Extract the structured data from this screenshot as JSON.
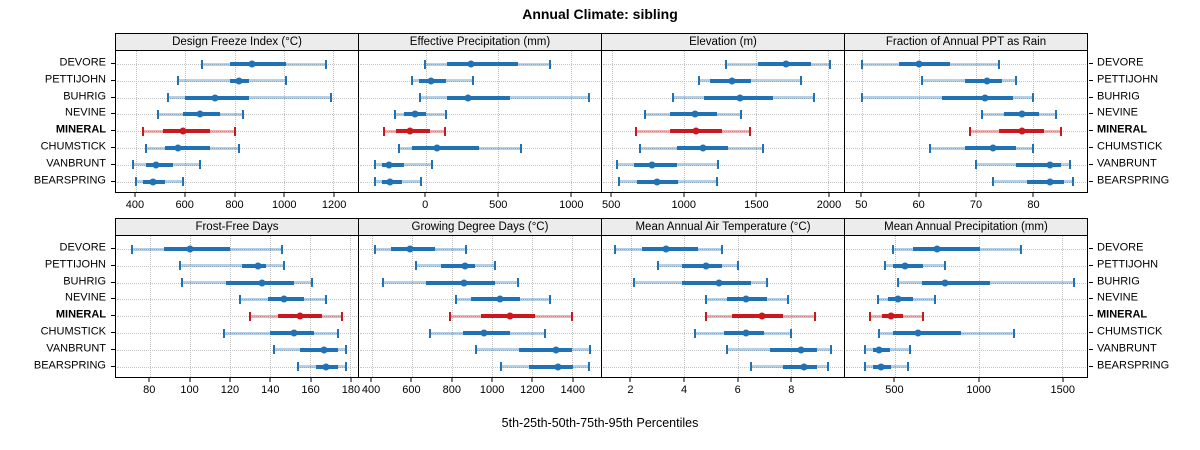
{
  "title": "Annual Climate: sibling",
  "caption": "5th-25th-50th-75th-95th Percentiles",
  "colors": {
    "series": "#2171B5",
    "series_faint": "rgba(33,113,181,0.33)",
    "highlight": "#CB181D",
    "highlight_faint": "rgba(203,24,29,0.33)",
    "strip_bg": "#ECECEC",
    "grid": "#C4C4C4",
    "border": "#000000"
  },
  "chart_data": {
    "type": "dotplot-interval",
    "orientation": "horizontal",
    "categories": [
      "DEVORE",
      "PETTIJOHN",
      "BUHRIG",
      "NEVINE",
      "MINERAL",
      "CHUMSTICK",
      "VANBRUNT",
      "BEARSPRING"
    ],
    "highlight": "MINERAL",
    "percentiles": [
      "5th",
      "25th",
      "50th",
      "75th",
      "95th"
    ],
    "grid": "dotted",
    "legend_position": "none",
    "panels": [
      {
        "id": "design-freeze-index",
        "band": "top",
        "title": "Design Freeze Index (°C)",
        "xlim": [
          320,
          1300
        ],
        "ticks": [
          400,
          600,
          800,
          1000,
          1200
        ],
        "values": [
          [
            670,
            780,
            870,
            1010,
            1170
          ],
          [
            570,
            780,
            820,
            860,
            1010
          ],
          [
            530,
            600,
            720,
            860,
            1190
          ],
          [
            490,
            590,
            660,
            740,
            835
          ],
          [
            430,
            510,
            590,
            700,
            800
          ],
          [
            440,
            520,
            570,
            700,
            820
          ],
          [
            390,
            440,
            480,
            550,
            660
          ],
          [
            400,
            430,
            470,
            520,
            590
          ]
        ]
      },
      {
        "id": "effective-precipitation",
        "band": "top",
        "title": "Effective Precipitation (mm)",
        "xlim": [
          -460,
          1210
        ],
        "ticks": [
          0,
          500,
          1000
        ],
        "values": [
          [
            -5,
            150,
            310,
            640,
            855
          ],
          [
            -95,
            -45,
            35,
            140,
            325
          ],
          [
            -40,
            150,
            290,
            585,
            1125
          ],
          [
            -210,
            -150,
            -75,
            0,
            140
          ],
          [
            -285,
            -205,
            -105,
            30,
            135
          ],
          [
            -185,
            -95,
            80,
            370,
            655
          ],
          [
            -350,
            -300,
            -253,
            -150,
            45
          ],
          [
            -350,
            -300,
            -246,
            -160,
            -30
          ]
        ]
      },
      {
        "id": "elevation",
        "band": "top",
        "title": "Elevation (m)",
        "xlim": [
          430,
          2110
        ],
        "ticks": [
          500,
          1000,
          1500,
          2000
        ],
        "values": [
          [
            1290,
            1510,
            1705,
            1880,
            2015
          ],
          [
            1100,
            1180,
            1330,
            1465,
            1810
          ],
          [
            925,
            1135,
            1390,
            1615,
            1900
          ],
          [
            730,
            905,
            1075,
            1225,
            1395
          ],
          [
            665,
            905,
            1080,
            1260,
            1460
          ],
          [
            695,
            950,
            1130,
            1305,
            1545
          ],
          [
            535,
            650,
            775,
            950,
            1235
          ],
          [
            550,
            675,
            810,
            960,
            1230
          ]
        ]
      },
      {
        "id": "fraction-of-annual-ppt-as-rain",
        "band": "top",
        "title": "Fraction of Annual PPT as Rain",
        "xlim": [
          47,
          89.5
        ],
        "ticks": [
          50,
          60,
          70,
          80
        ],
        "values": [
          [
            50,
            56.5,
            60,
            65.5,
            74
          ],
          [
            60.5,
            68,
            72,
            74.5,
            77
          ],
          [
            50,
            64,
            71.5,
            76.5,
            80
          ],
          [
            71,
            75,
            78,
            81,
            84
          ],
          [
            69,
            74,
            78,
            82,
            85
          ],
          [
            62,
            68,
            73,
            77,
            80
          ],
          [
            70,
            77,
            83,
            85,
            86.5
          ],
          [
            73,
            79,
            83,
            85.5,
            87
          ]
        ]
      },
      {
        "id": "frost-free-days",
        "band": "bottom",
        "title": "Frost-Free Days",
        "xlim": [
          63,
          184
        ],
        "ticks": [
          80,
          100,
          120,
          140,
          160,
          180
        ],
        "values": [
          [
            71,
            87,
            100,
            120,
            146
          ],
          [
            95,
            126,
            134,
            138,
            147
          ],
          [
            96,
            118,
            136,
            152,
            161
          ],
          [
            125,
            139,
            147,
            157,
            168
          ],
          [
            130,
            144,
            155,
            166,
            176
          ],
          [
            117,
            140,
            152,
            162,
            174
          ],
          [
            142,
            155,
            167,
            174,
            178
          ],
          [
            154,
            163,
            168,
            174,
            178
          ]
        ]
      },
      {
        "id": "growing-degree-days",
        "band": "bottom",
        "title": "Growing Degree Days (°C)",
        "xlim": [
          335,
          1545
        ],
        "ticks": [
          400,
          600,
          800,
          1000,
          1200,
          1400
        ],
        "values": [
          [
            415,
            495,
            590,
            715,
            870
          ],
          [
            620,
            745,
            865,
            915,
            1015
          ],
          [
            455,
            670,
            860,
            1015,
            1130
          ],
          [
            820,
            895,
            1040,
            1140,
            1290
          ],
          [
            790,
            945,
            1090,
            1215,
            1400
          ],
          [
            690,
            855,
            960,
            1090,
            1265
          ],
          [
            920,
            1135,
            1320,
            1400,
            1490
          ],
          [
            1045,
            1185,
            1330,
            1405,
            1485
          ]
        ]
      },
      {
        "id": "mean-annual-air-temperature",
        "band": "bottom",
        "title": "Mean Annual Air Temperature (°C)",
        "xlim": [
          0.9,
          10
        ],
        "ticks": [
          2,
          4,
          6,
          8
        ],
        "values": [
          [
            1.4,
            2.4,
            3.3,
            4.5,
            5.4
          ],
          [
            3.0,
            3.9,
            4.8,
            5.4,
            6.0
          ],
          [
            2.1,
            3.9,
            5.3,
            6.5,
            7.1
          ],
          [
            4.8,
            5.6,
            6.3,
            7.1,
            7.9
          ],
          [
            4.8,
            5.8,
            6.9,
            7.7,
            8.9
          ],
          [
            4.4,
            5.5,
            6.3,
            7.0,
            8.0
          ],
          [
            5.6,
            7.2,
            8.4,
            9.0,
            9.5
          ],
          [
            6.5,
            7.7,
            8.5,
            9.0,
            9.4
          ]
        ]
      },
      {
        "id": "mean-annual-precipitation",
        "band": "bottom",
        "title": "Mean Annual Precipitation (mm)",
        "xlim": [
          200,
          1650
        ],
        "ticks": [
          500,
          1000,
          1500
        ],
        "values": [
          [
            490,
            610,
            750,
            1010,
            1255
          ],
          [
            440,
            490,
            557,
            670,
            800
          ],
          [
            515,
            660,
            800,
            1070,
            1570
          ],
          [
            395,
            460,
            520,
            608,
            740
          ],
          [
            350,
            420,
            475,
            550,
            670
          ],
          [
            405,
            485,
            635,
            895,
            1215
          ],
          [
            320,
            365,
            405,
            472,
            590
          ],
          [
            318,
            365,
            418,
            476,
            575
          ]
        ]
      }
    ]
  }
}
